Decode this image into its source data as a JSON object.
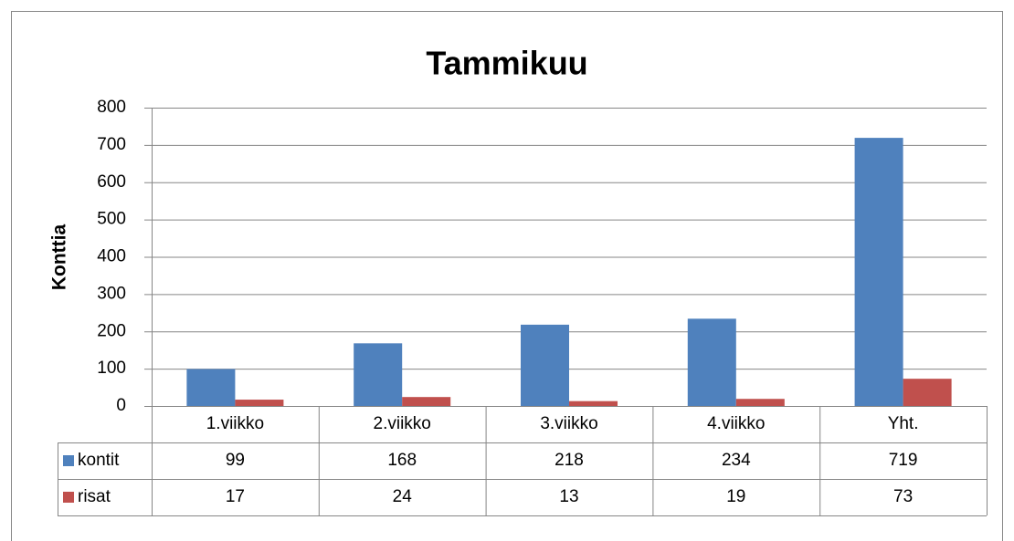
{
  "chart_data": {
    "type": "bar",
    "title": "Tammikuu",
    "y_label": "Konttia",
    "categories": [
      "1.viikko",
      "2.viikko",
      "3.viikko",
      "4.viikko",
      "Yht."
    ],
    "series": [
      {
        "name": "kontit",
        "color": "#4f81bd",
        "values": [
          99,
          168,
          218,
          234,
          719
        ]
      },
      {
        "name": "risat",
        "color": "#c0504d",
        "values": [
          17,
          24,
          13,
          19,
          73
        ]
      }
    ],
    "ylim": [
      0,
      800
    ],
    "yticks": [
      0,
      100,
      200,
      300,
      400,
      500,
      600,
      700,
      800
    ],
    "grid": true,
    "data_table": true
  }
}
